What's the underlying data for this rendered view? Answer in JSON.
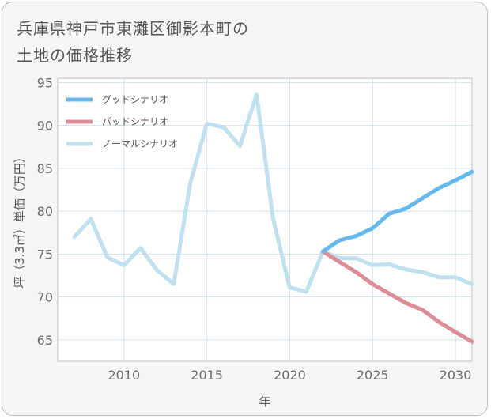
{
  "title_line1": "兵庫県神戸市東灘区御影本町の",
  "title_line2": "土地の価格推移",
  "chart_data": {
    "type": "line",
    "xlabel": "年",
    "ylabel": "坪（3.3㎡）単価（万円）",
    "xlim": [
      2006,
      2031
    ],
    "ylim": [
      62.5,
      95.5
    ],
    "xticks": [
      2010,
      2015,
      2020,
      2025,
      2030
    ],
    "yticks": [
      65,
      70,
      75,
      80,
      85,
      90,
      95
    ],
    "grid": true,
    "legend_position": "top-left",
    "series": [
      {
        "name": "グッドシナリオ",
        "color": "#64b8ee",
        "x": [
          2022,
          2023,
          2024,
          2025,
          2026,
          2027,
          2028,
          2029,
          2030,
          2031
        ],
        "y": [
          75.3,
          76.6,
          77.1,
          78.0,
          79.7,
          80.3,
          81.5,
          82.7,
          83.6,
          84.6
        ]
      },
      {
        "name": "バッドシナリオ",
        "color": "#dc8d95",
        "x": [
          2022,
          2023,
          2024,
          2025,
          2026,
          2027,
          2028,
          2029,
          2030,
          2031
        ],
        "y": [
          75.3,
          74.1,
          72.9,
          71.5,
          70.4,
          69.3,
          68.5,
          67.1,
          65.9,
          64.8
        ]
      },
      {
        "name": "ノーマルシナリオ",
        "color": "#bfe0ee",
        "x": [
          2007,
          2008,
          2009,
          2010,
          2011,
          2012,
          2013,
          2014,
          2015,
          2016,
          2017,
          2018,
          2019,
          2020,
          2021,
          2022,
          2023,
          2024,
          2025,
          2026,
          2027,
          2028,
          2029,
          2030,
          2031
        ],
        "y": [
          77.0,
          79.1,
          74.6,
          73.7,
          75.7,
          73.1,
          71.5,
          83.3,
          90.2,
          89.8,
          87.6,
          93.6,
          79.1,
          71.1,
          70.6,
          75.3,
          74.5,
          74.5,
          73.7,
          73.8,
          73.2,
          72.9,
          72.3,
          72.3,
          71.5
        ]
      }
    ]
  }
}
